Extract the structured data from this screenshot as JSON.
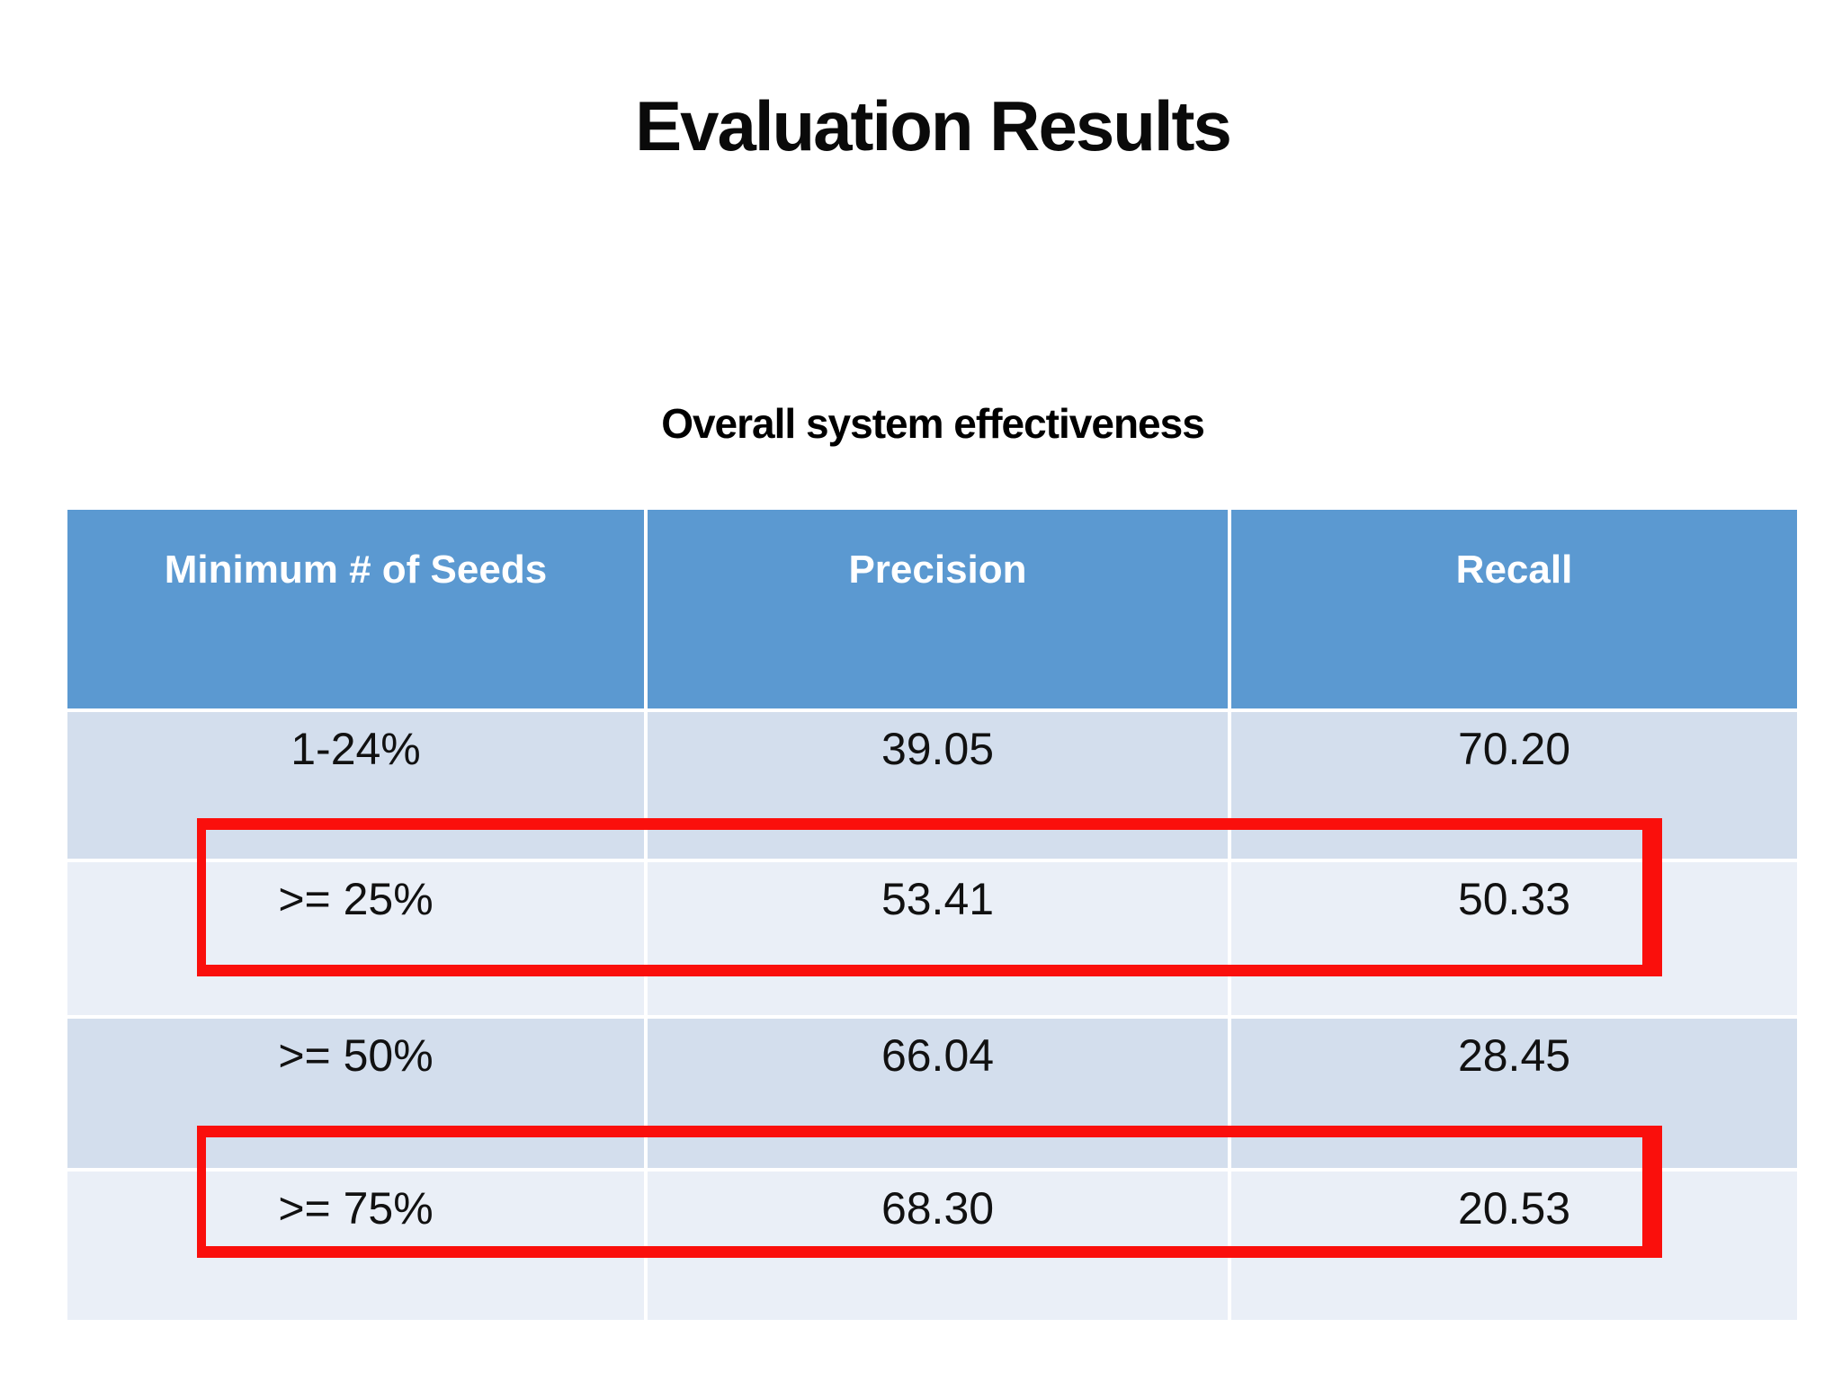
{
  "slide": {
    "title": "Evaluation Results",
    "subtitle": "Overall system effectiveness"
  },
  "table": {
    "columns": [
      "Minimum # of Seeds",
      "Precision",
      "Recall"
    ],
    "rows": [
      {
        "seeds": "1-24%",
        "precision": "39.05",
        "recall": "70.20",
        "highlighted": false
      },
      {
        "seeds": ">= 25%",
        "precision": "53.41",
        "recall": "50.33",
        "highlighted": true
      },
      {
        "seeds": ">= 50%",
        "precision": "66.04",
        "recall": "28.45",
        "highlighted": false
      },
      {
        "seeds": ">= 75%",
        "precision": "68.30",
        "recall": "20.53",
        "highlighted": true
      }
    ]
  },
  "colors": {
    "header_bg": "#5b99d1",
    "header_text": "#ffffff",
    "row_band_dark": "#d3deed",
    "row_band_light": "#eaeff7",
    "highlight_border": "#fa0f0c",
    "body_text": "#111111",
    "background": "#ffffff"
  }
}
